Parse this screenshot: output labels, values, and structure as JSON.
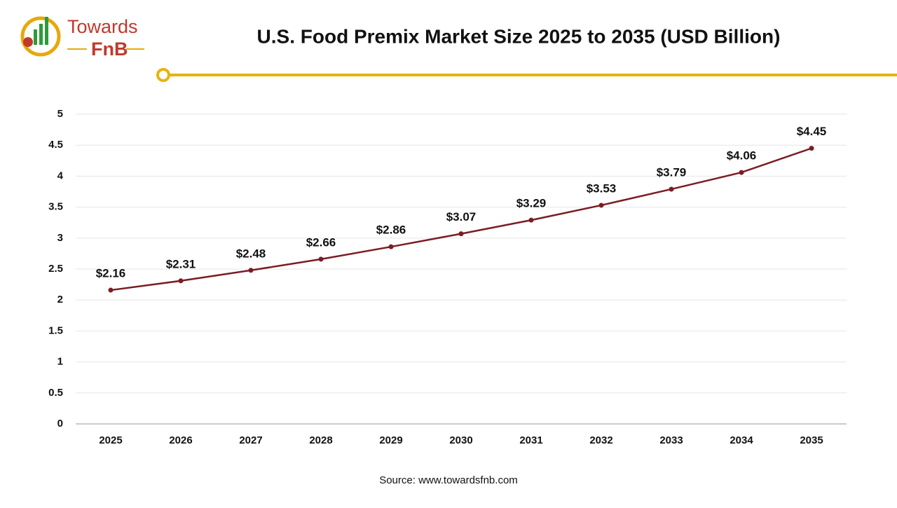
{
  "logo": {
    "line1": "Towards",
    "line2": "FnB"
  },
  "chart_data": {
    "type": "line",
    "title": "U.S. Food Premix Market Size 2025 to 2035 (USD Billion)",
    "categories": [
      "2025",
      "2026",
      "2027",
      "2028",
      "2029",
      "2030",
      "2031",
      "2032",
      "2033",
      "2034",
      "2035"
    ],
    "values": [
      2.16,
      2.31,
      2.48,
      2.66,
      2.86,
      3.07,
      3.29,
      3.53,
      3.79,
      4.06,
      4.45
    ],
    "value_labels": [
      "$2.16",
      "$2.31",
      "$2.48",
      "$2.66",
      "$2.86",
      "$3.07",
      "$3.29",
      "$3.53",
      "$3.79",
      "$4.06",
      "$4.45"
    ],
    "color": "#7b1c24",
    "ylim": [
      0,
      5
    ],
    "yticks": [
      0,
      0.5,
      1,
      1.5,
      2,
      2.5,
      3,
      3.5,
      4,
      4.5,
      5
    ],
    "grid": true,
    "source": "Source: www.towardsfnb.com"
  }
}
